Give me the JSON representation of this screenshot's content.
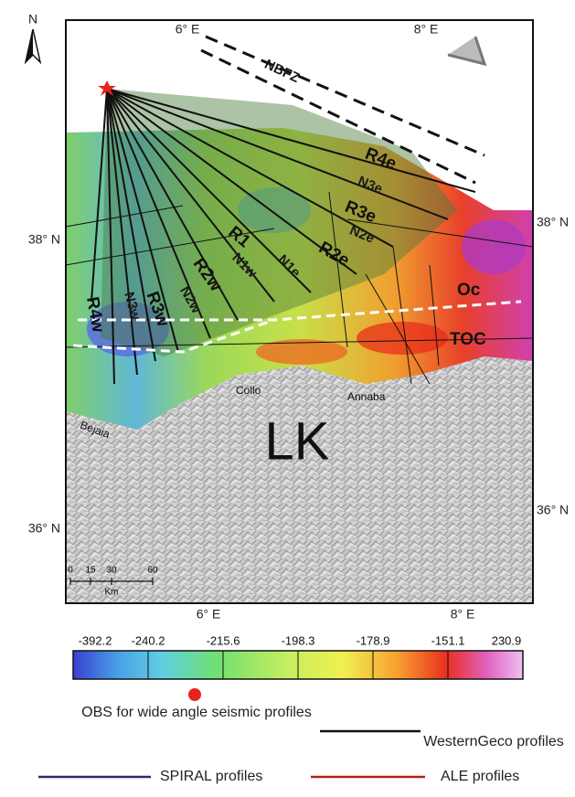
{
  "map": {
    "north": "N",
    "top_ticks": [
      "6° E",
      "8° E"
    ],
    "bottom_ticks": [
      "6° E",
      "8° E"
    ],
    "left_ticks": [
      "38° N",
      "36° N"
    ],
    "right_ticks": [
      "38° N",
      "36° N"
    ],
    "fault": "NBFZ",
    "profiles": [
      "R4e",
      "N3e",
      "R3e",
      "N2e",
      "R2e",
      "N1e",
      "R1",
      "N1w",
      "R2w",
      "N2w",
      "R3w",
      "N3w",
      "R4w"
    ],
    "zones": [
      "Oc",
      "TOC"
    ],
    "places": [
      "Collo",
      "Annaba",
      "Bejaia"
    ],
    "block": "LK",
    "scale_labels": [
      "0",
      "15",
      "30",
      "60"
    ],
    "scale_unit": "Km"
  },
  "colorbar": {
    "ticks": [
      -392.2,
      -240.2,
      -215.6,
      -198.3,
      -178.9,
      -151.1,
      230.9
    ]
  },
  "legend": {
    "obs": "OBS for wide angle seismic profiles",
    "westerngeco": "WesternGeco profiles",
    "spiral": "SPIRAL profiles",
    "ale": "ALE profiles"
  }
}
